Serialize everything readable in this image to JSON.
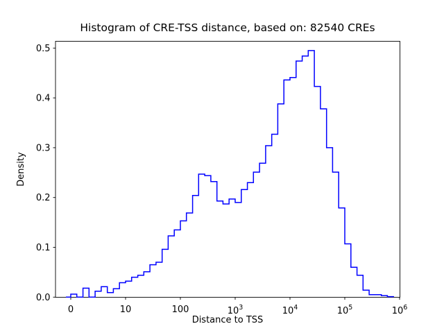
{
  "figure": {
    "title": "Histogram of CRE-TSS distance, based on: 82540 CREs",
    "xlabel": "Distance to TSS",
    "ylabel": "Density"
  },
  "chart_data": {
    "type": "bar",
    "subtype": "step-histogram-density",
    "title": "Histogram of CRE-TSS distance, based on: 82540 CREs",
    "xlabel": "Distance to TSS",
    "ylabel": "Density",
    "sample_count": 82540,
    "line_color": "#0000ff",
    "axis_color": "#000000",
    "background_color": "#ffffff",
    "x_scale": "symlog",
    "grid": false,
    "legend": false,
    "xlim_display": [
      0,
      1000000
    ],
    "ylim": [
      0,
      0.514
    ],
    "x_ticks": [
      {
        "label": "0",
        "pos": 1
      },
      {
        "label": "10",
        "pos": 10
      },
      {
        "label": "100",
        "pos": 100
      },
      {
        "label": "10^3",
        "pos": 1000
      },
      {
        "label": "10^4",
        "pos": 10000
      },
      {
        "label": "10^5",
        "pos": 100000
      },
      {
        "label": "10^6",
        "pos": 1000000
      }
    ],
    "y_ticks": [
      {
        "label": "0.0",
        "value": 0.0
      },
      {
        "label": "0.1",
        "value": 0.1
      },
      {
        "label": "0.2",
        "value": 0.2
      },
      {
        "label": "0.3",
        "value": 0.3
      },
      {
        "label": "0.4",
        "value": 0.4
      },
      {
        "label": "0.5",
        "value": 0.5
      }
    ],
    "bin_edges": [
      0,
      1,
      1.29,
      1.67,
      2.15,
      2.78,
      3.59,
      4.64,
      5.99,
      7.74,
      10,
      12.9,
      16.7,
      21.5,
      27.8,
      35.9,
      46.4,
      59.9,
      77.4,
      100,
      129,
      167,
      215,
      278,
      359,
      464,
      599,
      774,
      1000,
      1292,
      1668,
      2154,
      2783,
      3594,
      4642,
      5995,
      7743,
      10000,
      12915,
      16681,
      21544,
      27826,
      35938,
      46416,
      59948,
      77426,
      100000,
      129155,
      166810,
      215443,
      278256,
      359381,
      464159,
      599484,
      774264
    ],
    "densities": [
      0.0,
      0.006,
      0.0,
      0.018,
      0.0,
      0.012,
      0.021,
      0.009,
      0.017,
      0.029,
      0.032,
      0.04,
      0.044,
      0.051,
      0.065,
      0.07,
      0.096,
      0.123,
      0.135,
      0.153,
      0.169,
      0.204,
      0.247,
      0.244,
      0.232,
      0.193,
      0.187,
      0.197,
      0.19,
      0.216,
      0.23,
      0.251,
      0.269,
      0.304,
      0.327,
      0.388,
      0.436,
      0.441,
      0.474,
      0.484,
      0.495,
      0.423,
      0.378,
      0.3,
      0.251,
      0.179,
      0.107,
      0.06,
      0.044,
      0.014,
      0.005,
      0.005,
      0.003,
      0.001
    ]
  }
}
